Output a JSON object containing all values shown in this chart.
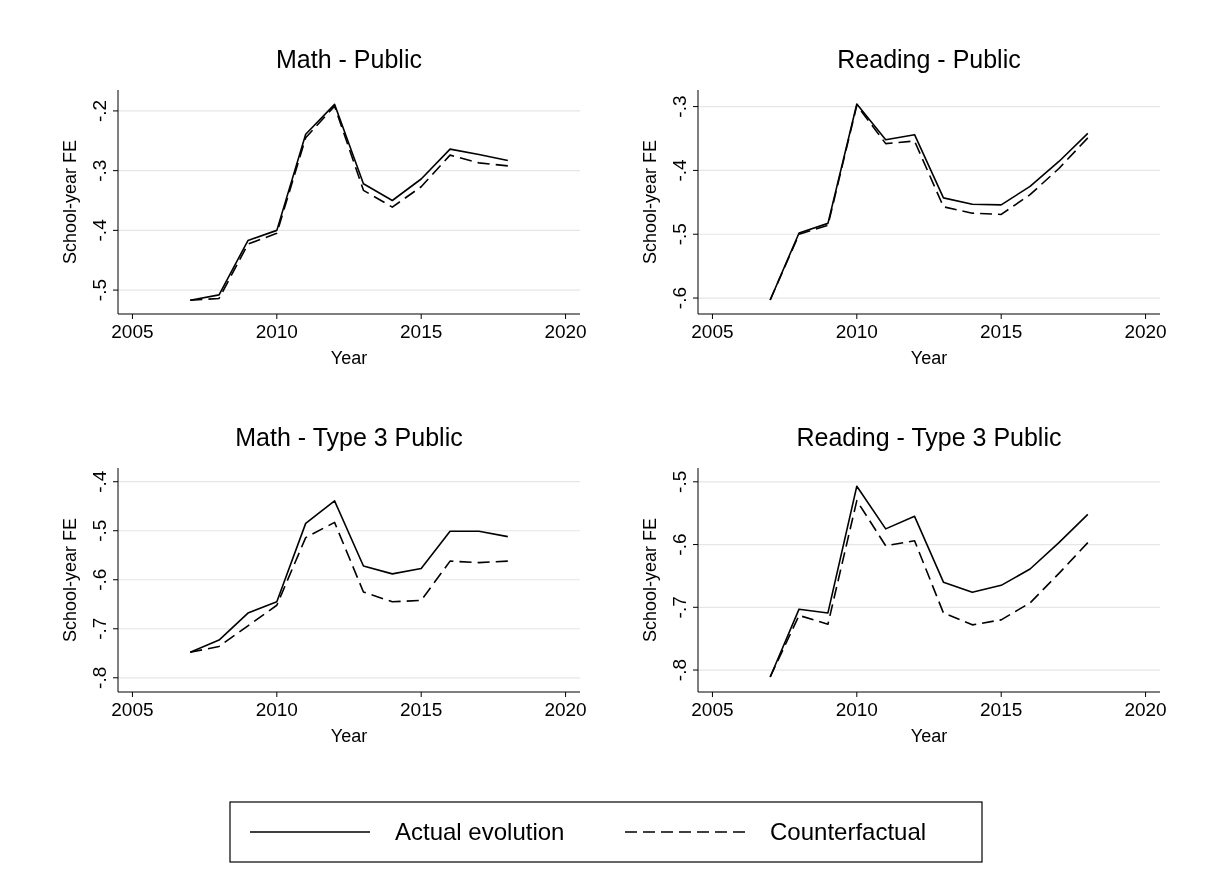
{
  "chart_data": [
    {
      "type": "line",
      "title": "Math - Public",
      "xlabel": "Year",
      "ylabel": "School-year FE",
      "x": [
        2007,
        2008,
        2009,
        2010,
        2011,
        2012,
        2013,
        2014,
        2015,
        2016,
        2017,
        2018
      ],
      "xlim": [
        2004.5,
        2020.5
      ],
      "xticks": [
        2005,
        2010,
        2015,
        2020
      ],
      "ylim": [
        -0.54,
        -0.165
      ],
      "yticks": [
        {
          "value": -0.5,
          "label": "-.5"
        },
        {
          "value": -0.4,
          "label": "-.4"
        },
        {
          "value": -0.3,
          "label": "-.3"
        },
        {
          "value": -0.2,
          "label": "-.2"
        }
      ],
      "grid": "y",
      "legend": "bottom",
      "series": [
        {
          "name": "Actual evolution",
          "color": "#000000",
          "line_style": "solid",
          "values": [
            -0.517,
            -0.508,
            -0.417,
            -0.4,
            -0.239,
            -0.189,
            -0.322,
            -0.35,
            -0.314,
            -0.264,
            -0.273,
            -0.283
          ]
        },
        {
          "name": "Counterfactual",
          "color": "#000000",
          "line_style": "dashed",
          "values": [
            -0.517,
            -0.514,
            -0.423,
            -0.405,
            -0.245,
            -0.192,
            -0.333,
            -0.361,
            -0.327,
            -0.274,
            -0.287,
            -0.292
          ]
        }
      ]
    },
    {
      "type": "line",
      "title": "Reading - Public",
      "xlabel": "Year",
      "ylabel": "School-year FE",
      "x": [
        2007,
        2008,
        2009,
        2010,
        2011,
        2012,
        2013,
        2014,
        2015,
        2016,
        2017,
        2018
      ],
      "xlim": [
        2004.5,
        2020.5
      ],
      "xticks": [
        2005,
        2010,
        2015,
        2020
      ],
      "ylim": [
        -0.625,
        -0.274
      ],
      "yticks": [
        {
          "value": -0.6,
          "label": "-.6"
        },
        {
          "value": -0.5,
          "label": "-.5"
        },
        {
          "value": -0.4,
          "label": "-.4"
        },
        {
          "value": -0.3,
          "label": "-.3"
        }
      ],
      "grid": "y",
      "series": [
        {
          "color": "#000000",
          "line_style": "solid",
          "values": [
            -0.603,
            -0.498,
            -0.483,
            -0.296,
            -0.352,
            -0.344,
            -0.443,
            -0.453,
            -0.454,
            -0.425,
            -0.386,
            -0.342
          ]
        },
        {
          "color": "#000000",
          "line_style": "dashed",
          "values": [
            -0.603,
            -0.5,
            -0.486,
            -0.298,
            -0.358,
            -0.354,
            -0.457,
            -0.467,
            -0.469,
            -0.438,
            -0.397,
            -0.349
          ]
        }
      ]
    },
    {
      "type": "line",
      "title": "Math - Type 3 Public",
      "xlabel": "Year",
      "ylabel": "School-year FE",
      "x": [
        2007,
        2008,
        2009,
        2010,
        2011,
        2012,
        2013,
        2014,
        2015,
        2016,
        2017,
        2018
      ],
      "xlim": [
        2004.5,
        2020.5
      ],
      "xticks": [
        2005,
        2010,
        2015,
        2020
      ],
      "ylim": [
        -0.829,
        -0.372
      ],
      "yticks": [
        {
          "value": -0.8,
          "label": "-.8"
        },
        {
          "value": -0.7,
          "label": "-.7"
        },
        {
          "value": -0.6,
          "label": "-.6"
        },
        {
          "value": -0.5,
          "label": "-.5"
        },
        {
          "value": -0.4,
          "label": "-.4"
        }
      ],
      "grid": "y",
      "series": [
        {
          "color": "#000000",
          "line_style": "solid",
          "values": [
            -0.748,
            -0.723,
            -0.668,
            -0.645,
            -0.485,
            -0.439,
            -0.572,
            -0.588,
            -0.577,
            -0.501,
            -0.501,
            -0.512
          ]
        },
        {
          "color": "#000000",
          "line_style": "dashed",
          "values": [
            -0.748,
            -0.736,
            -0.694,
            -0.652,
            -0.514,
            -0.483,
            -0.625,
            -0.645,
            -0.642,
            -0.562,
            -0.565,
            -0.562
          ]
        }
      ]
    },
    {
      "type": "line",
      "title": "Reading - Type 3 Public",
      "xlabel": "Year",
      "ylabel": "School-year FE",
      "x": [
        2007,
        2008,
        2009,
        2010,
        2011,
        2012,
        2013,
        2014,
        2015,
        2016,
        2017,
        2018
      ],
      "xlim": [
        2004.5,
        2020.5
      ],
      "xticks": [
        2005,
        2010,
        2015,
        2020
      ],
      "ylim": [
        -0.835,
        -0.478
      ],
      "yticks": [
        {
          "value": -0.8,
          "label": "-.8"
        },
        {
          "value": -0.7,
          "label": "-.7"
        },
        {
          "value": -0.6,
          "label": "-.6"
        },
        {
          "value": -0.5,
          "label": "-.5"
        }
      ],
      "grid": "y",
      "series": [
        {
          "color": "#000000",
          "line_style": "solid",
          "values": [
            -0.811,
            -0.703,
            -0.709,
            -0.507,
            -0.575,
            -0.555,
            -0.66,
            -0.676,
            -0.665,
            -0.639,
            -0.597,
            -0.552
          ]
        },
        {
          "color": "#000000",
          "line_style": "dashed",
          "values": [
            -0.811,
            -0.713,
            -0.727,
            -0.53,
            -0.602,
            -0.594,
            -0.709,
            -0.728,
            -0.72,
            -0.693,
            -0.646,
            -0.597
          ]
        }
      ]
    }
  ]
}
